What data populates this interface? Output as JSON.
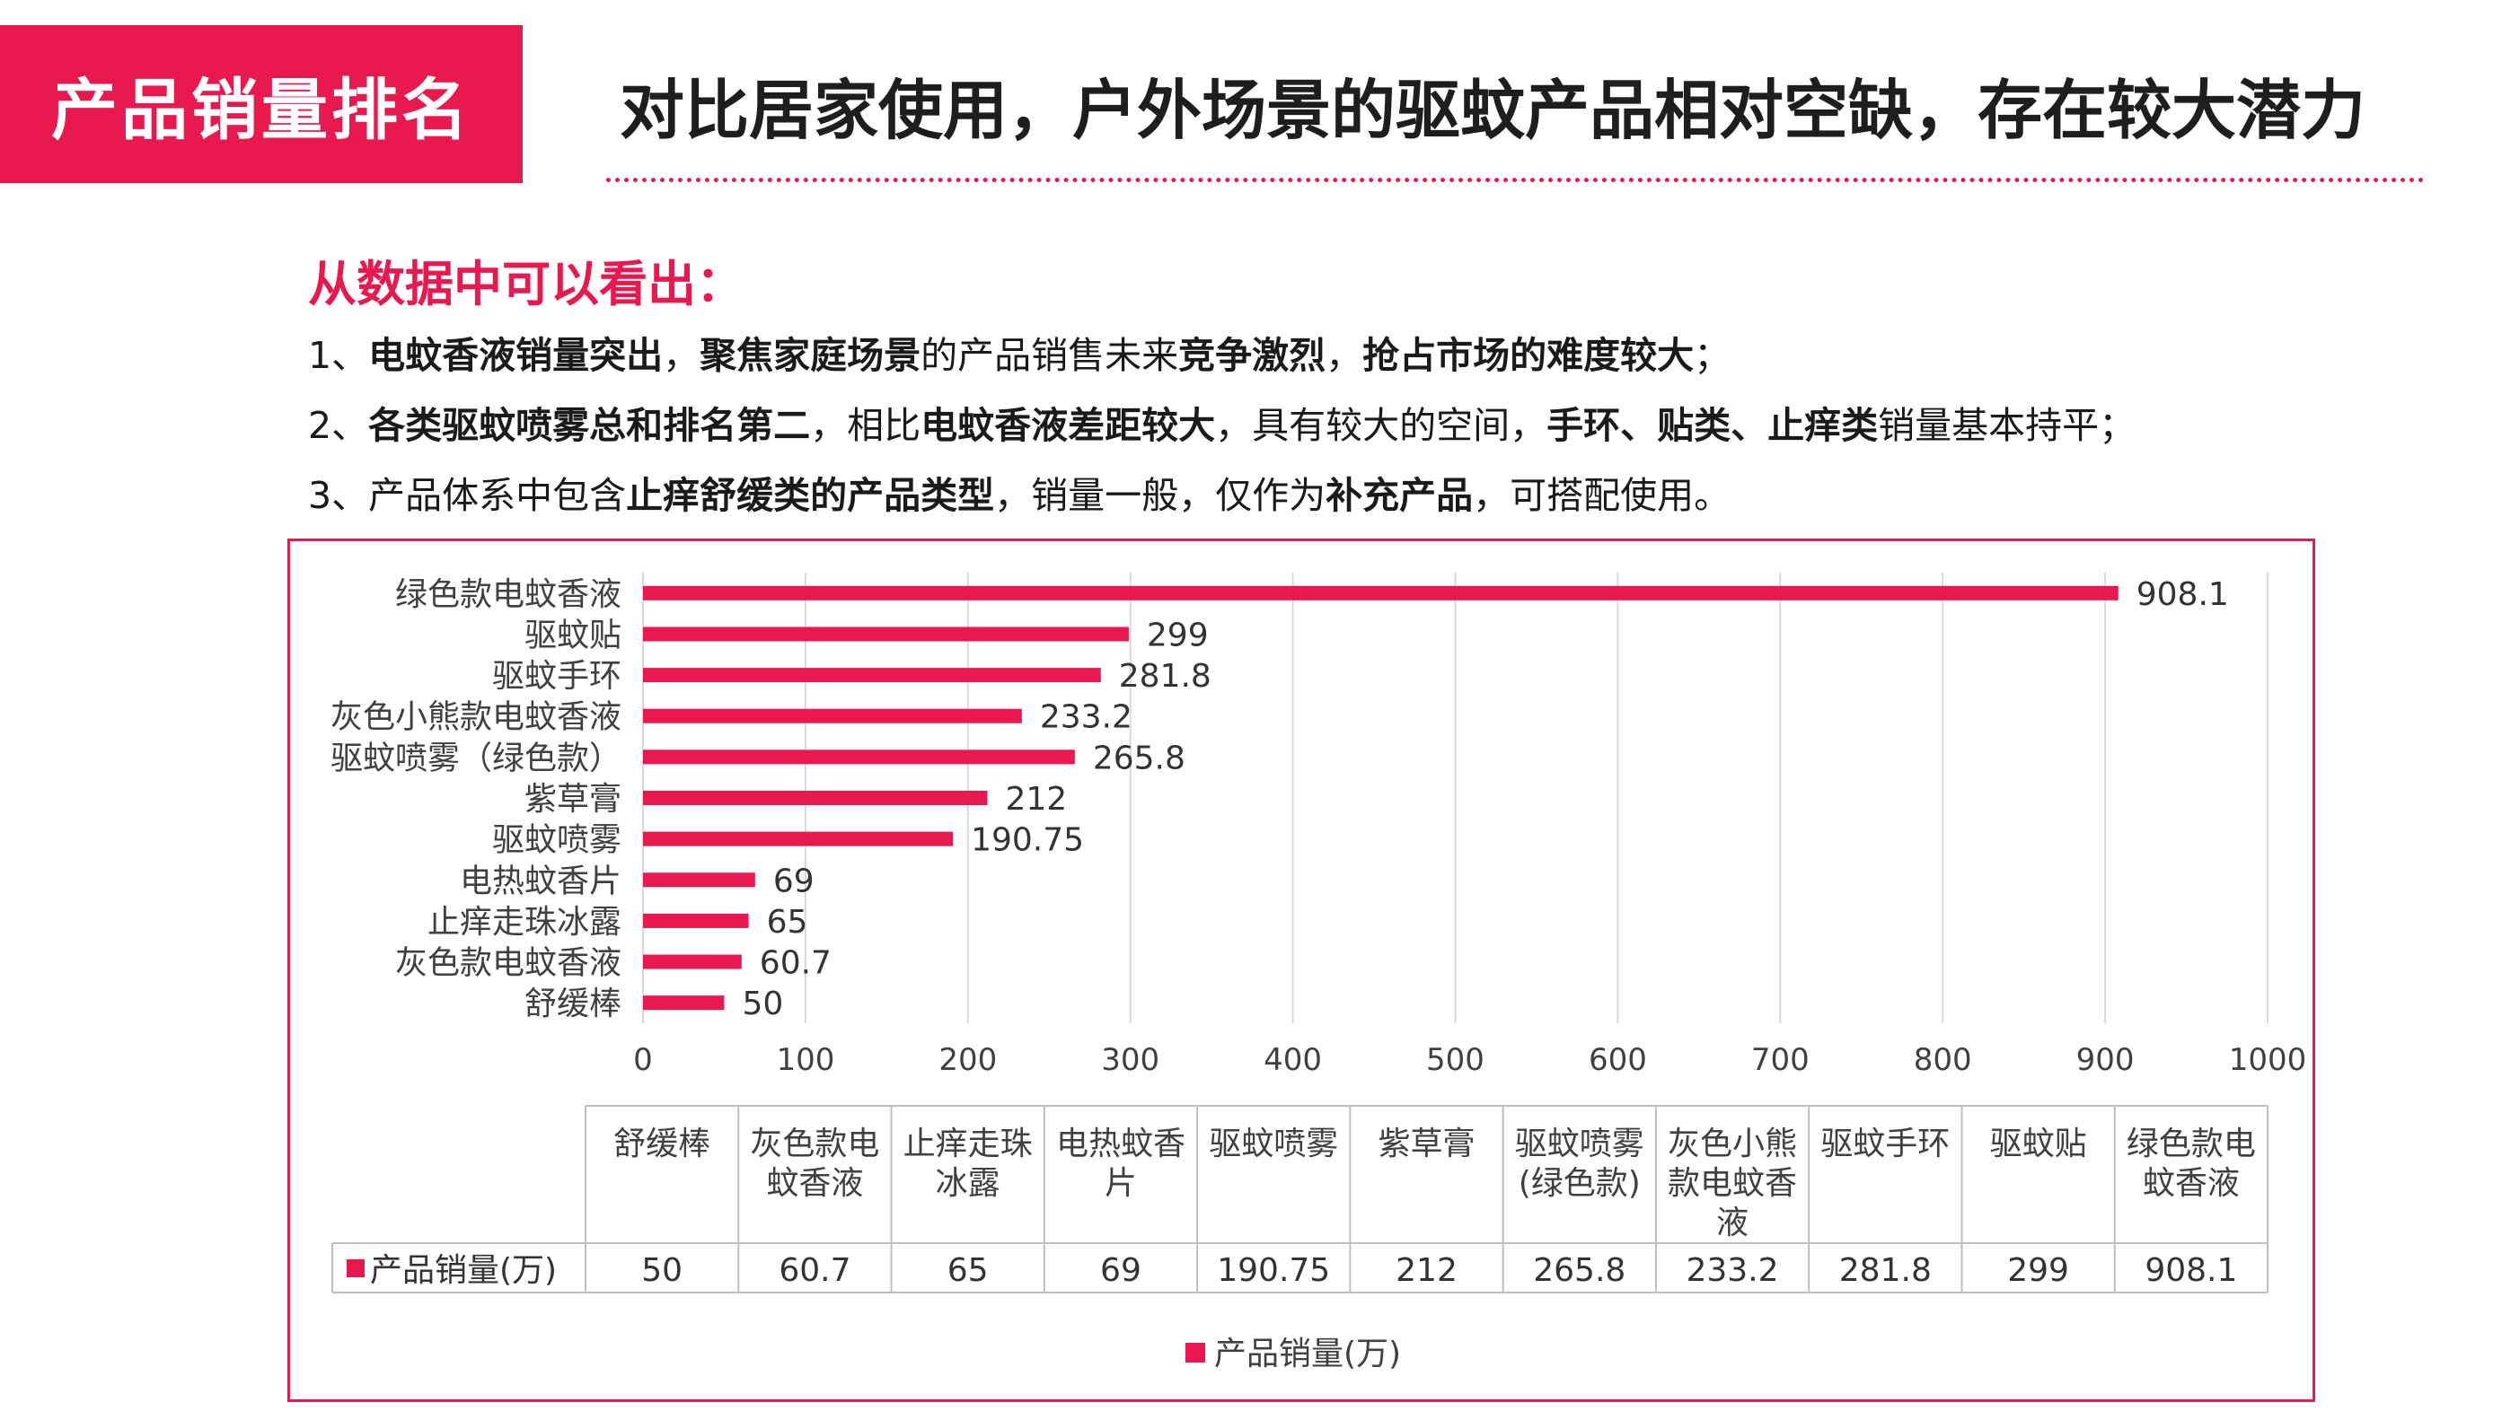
{
  "tag": "产品销量排名",
  "headline": "对比居家使用，户外场景的驱蚊产品相对空缺，存在较大潜力",
  "insights": {
    "title": "从数据中可以看出：",
    "lines": [
      [
        {
          "t": "1、",
          "b": false
        },
        {
          "t": "电蚊香液销量突出",
          "b": true
        },
        {
          "t": "，",
          "b": false
        },
        {
          "t": "聚焦家庭场景",
          "b": true
        },
        {
          "t": "的产品销售未来",
          "b": false
        },
        {
          "t": "竞争激烈",
          "b": true
        },
        {
          "t": "，",
          "b": false
        },
        {
          "t": "抢占市场的难度较大",
          "b": true
        },
        {
          "t": "；",
          "b": false
        }
      ],
      [
        {
          "t": "2、",
          "b": false
        },
        {
          "t": "各类驱蚊喷雾总和排名第二",
          "b": true
        },
        {
          "t": "，相比",
          "b": false
        },
        {
          "t": "电蚊香液差距较大",
          "b": true
        },
        {
          "t": "，具有较大的空间，",
          "b": false
        },
        {
          "t": "手环、贴类、止痒类",
          "b": true
        },
        {
          "t": "销量基本持平；",
          "b": false
        }
      ],
      [
        {
          "t": "3、产品体系中包含",
          "b": false
        },
        {
          "t": "止痒舒缓类的产品类型",
          "b": true
        },
        {
          "t": "，销量一般，仅作为",
          "b": false
        },
        {
          "t": "补充产品",
          "b": true
        },
        {
          "t": "，可搭配使用。",
          "b": false
        }
      ]
    ]
  },
  "chart_data": {
    "type": "bar",
    "orientation": "horizontal",
    "categories": [
      "绿色款电蚊香液",
      "驱蚊贴",
      "驱蚊手环",
      "灰色小熊款电蚊香液",
      "驱蚊喷雾（绿色款）",
      "紫草膏",
      "驱蚊喷雾",
      "电热蚊香片",
      "止痒走珠冰露",
      "灰色款电蚊香液",
      "舒缓棒"
    ],
    "series": [
      {
        "name": "产品销量(万)",
        "values": [
          908.1,
          299,
          281.8,
          233.2,
          265.8,
          212,
          190.75,
          69,
          65,
          60.7,
          50
        ],
        "color": "#e8194f"
      }
    ],
    "value_labels": [
      "908.1",
      "299",
      "281.8",
      "233.2",
      "265.8",
      "212",
      "190.75",
      "69",
      "65",
      "60.7",
      "50"
    ],
    "xlim": [
      0,
      1000
    ],
    "xticks": [
      "0",
      "100",
      "200",
      "300",
      "400",
      "500",
      "600",
      "700",
      "800",
      "900",
      "1000"
    ],
    "grid": true,
    "legend": "bottom",
    "data_table": {
      "columns": [
        "舒缓棒",
        "灰色款电\n蚊香液",
        "止痒走珠\n冰露",
        "电热蚊香\n片",
        "驱蚊喷雾",
        "紫草膏",
        "驱蚊喷雾\n(绿色款)",
        "灰色小熊\n款电蚊香\n液",
        "驱蚊手环",
        "驱蚊贴",
        "绿色款电\n蚊香液"
      ],
      "row_label": "产品销量(万)",
      "values": [
        "50",
        "60.7",
        "65",
        "69",
        "190.75",
        "212",
        "265.8",
        "233.2",
        "281.8",
        "299",
        "908.1"
      ]
    }
  }
}
